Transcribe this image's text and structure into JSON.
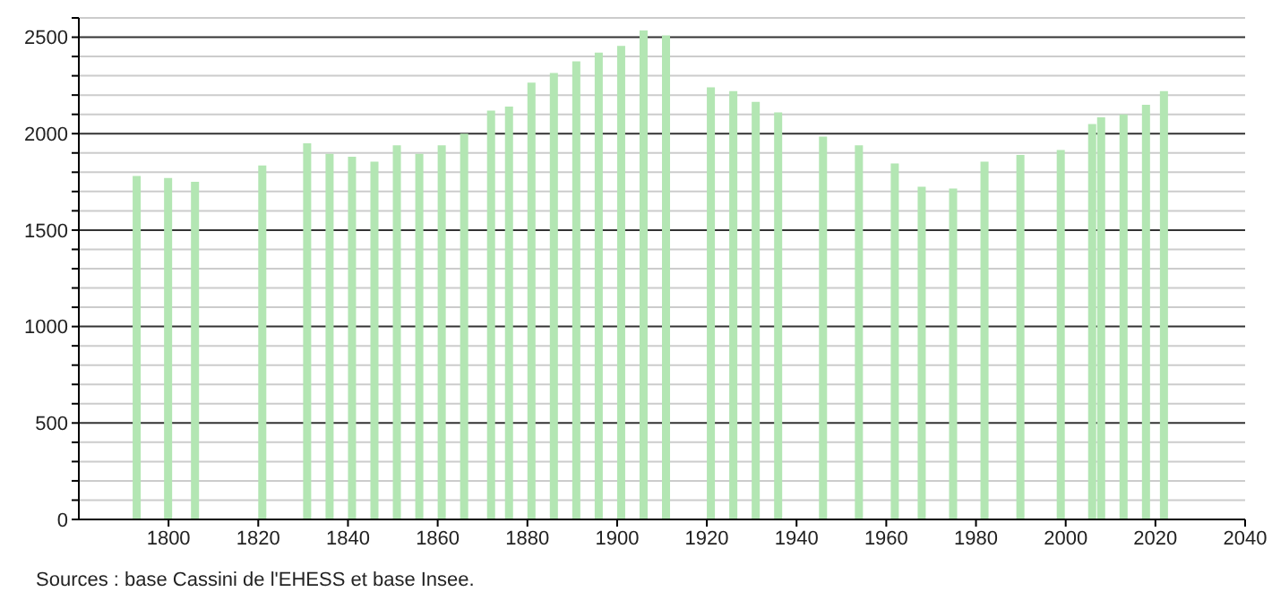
{
  "chart_data": {
    "type": "bar",
    "x": [
      1793,
      1800,
      1806,
      1821,
      1831,
      1836,
      1841,
      1846,
      1851,
      1856,
      1861,
      1866,
      1872,
      1876,
      1881,
      1886,
      1891,
      1896,
      1901,
      1906,
      1911,
      1921,
      1926,
      1931,
      1936,
      1946,
      1954,
      1962,
      1968,
      1975,
      1982,
      1990,
      1999,
      2006,
      2008,
      2013,
      2018,
      2022
    ],
    "values": [
      1780,
      1770,
      1750,
      1835,
      1950,
      1895,
      1880,
      1855,
      1940,
      1895,
      1940,
      2000,
      2120,
      2140,
      2265,
      2315,
      2375,
      2420,
      2455,
      2535,
      2510,
      2240,
      2220,
      2165,
      2110,
      1985,
      1940,
      1845,
      1725,
      1715,
      1855,
      1890,
      1915,
      2050,
      2085,
      2100,
      2150,
      2220
    ],
    "color": "#b3e6b3",
    "xlim": [
      1780,
      2040
    ],
    "xticks": [
      1800,
      1820,
      1840,
      1860,
      1880,
      1900,
      1920,
      1940,
      1960,
      1980,
      2000,
      2020,
      2040
    ],
    "ylim": [
      0,
      2600
    ],
    "yticks": [
      0,
      {
        "value": 100,
        "label": null
      },
      {
        "value": 200,
        "label": null
      },
      {
        "value": 300,
        "label": null
      },
      {
        "value": 400,
        "label": null
      },
      500,
      {
        "value": 600,
        "label": null
      },
      {
        "value": 700,
        "label": null
      },
      {
        "value": 800,
        "label": null
      },
      {
        "value": 900,
        "label": null
      },
      1000,
      {
        "value": 1100,
        "label": null
      },
      {
        "value": 1200,
        "label": null
      },
      {
        "value": 1300,
        "label": null
      },
      {
        "value": 1400,
        "label": null
      },
      1500,
      {
        "value": 1600,
        "label": null
      },
      {
        "value": 1700,
        "label": null
      },
      {
        "value": 1800,
        "label": null
      },
      {
        "value": 1900,
        "label": null
      },
      2000,
      {
        "value": 2100,
        "label": null
      },
      {
        "value": 2200,
        "label": null
      },
      {
        "value": 2300,
        "label": null
      },
      {
        "value": 2400,
        "label": null
      },
      2500,
      {
        "value": 2600,
        "label": null
      }
    ],
    "grid": "y",
    "annotations": [
      "Sources : base Cassini de l'EHESS et base Insee."
    ]
  }
}
